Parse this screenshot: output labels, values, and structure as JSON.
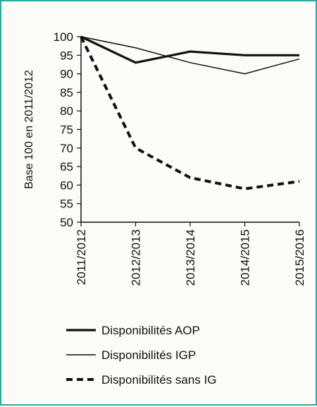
{
  "chart_data": {
    "type": "line",
    "ylabel": "Base 100 en 2011/2012",
    "categories": [
      "2011/2012",
      "2012/2013",
      "2013/2014",
      "2014/2015",
      "2015/2016"
    ],
    "ylim": [
      50,
      100
    ],
    "yticks": [
      50,
      55,
      60,
      65,
      70,
      75,
      80,
      85,
      90,
      95,
      100
    ],
    "grid": false,
    "legend_position": "bottom",
    "series": [
      {
        "name": "Disponibilités AOP",
        "style": "thick-solid",
        "color": "#111111",
        "values": [
          100,
          93,
          96,
          95,
          95
        ]
      },
      {
        "name": "Disponibilités IGP",
        "style": "thin-solid",
        "color": "#111111",
        "values": [
          100,
          97,
          93,
          90,
          94
        ]
      },
      {
        "name": "Disponibilités sans IG",
        "style": "thick-dashed",
        "color": "#111111",
        "values": [
          100,
          70,
          62,
          59,
          61
        ]
      }
    ]
  },
  "colors": {
    "frame_border": "#2aa9a2",
    "background": "#fbfcf8",
    "ink": "#111111"
  }
}
